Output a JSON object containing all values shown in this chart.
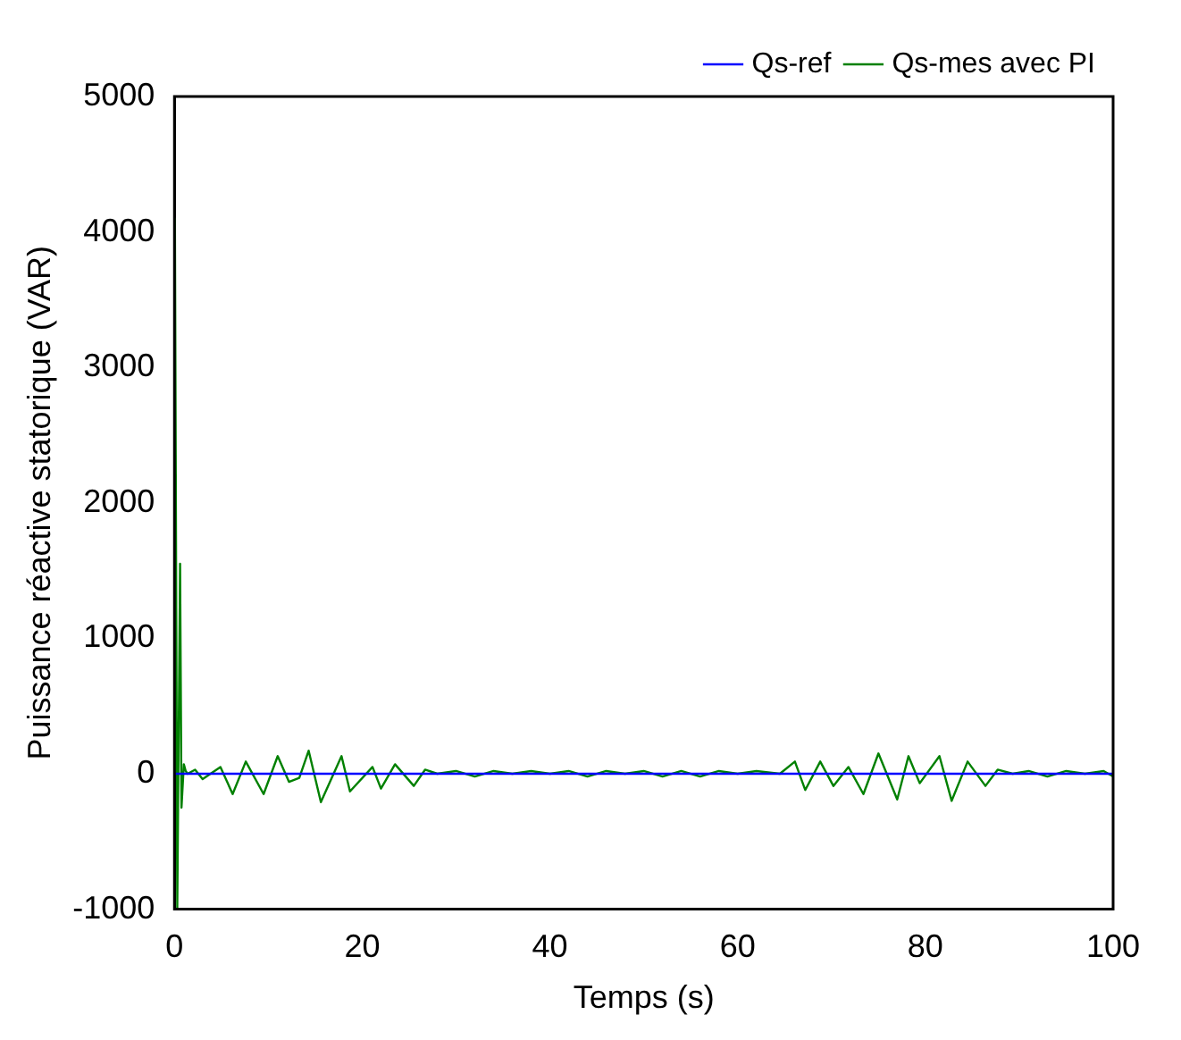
{
  "chart_data": {
    "type": "line",
    "xlabel": "Temps (s)",
    "ylabel": "Puissance réactive statorique (VAR)",
    "xlim": [
      0,
      100
    ],
    "ylim": [
      -1000,
      5000
    ],
    "xticks": [
      0,
      20,
      40,
      60,
      80,
      100
    ],
    "yticks": [
      -1000,
      0,
      1000,
      2000,
      3000,
      4000,
      5000
    ],
    "grid": false,
    "legend": "top right",
    "marker": "none",
    "line_style": "solid",
    "series": [
      {
        "name": "Qs-ref",
        "color": "#0000ff",
        "x": [
          0,
          100
        ],
        "values": [
          0,
          0
        ]
      },
      {
        "name": "Qs-mes avec PI",
        "color": "#008000",
        "x": [
          0,
          0.05,
          0.3,
          0.6,
          0.75,
          1.0,
          1.2,
          1.4,
          2.2,
          3.0,
          4.9,
          6.2,
          7.6,
          9.5,
          11.0,
          12.2,
          13.3,
          14.3,
          15.6,
          17.8,
          18.7,
          21.1,
          22.0,
          23.5,
          25.5,
          26.7,
          28.0,
          30,
          32,
          34,
          36,
          38,
          40,
          42,
          44,
          46,
          48,
          50,
          52,
          54,
          56,
          58,
          60,
          62,
          64.5,
          66.1,
          67.2,
          68.8,
          70.2,
          71.8,
          73.4,
          75.0,
          77.0,
          78.2,
          79.4,
          81.5,
          82.8,
          84.5,
          86.4,
          87.7,
          89.3,
          91,
          93,
          95,
          97,
          99,
          100
        ],
        "values": [
          0,
          4100,
          -1000,
          1550,
          -250,
          70,
          20,
          0,
          30,
          -40,
          50,
          -150,
          90,
          -150,
          130,
          -60,
          -30,
          170,
          -210,
          130,
          -130,
          50,
          -110,
          70,
          -90,
          30,
          0,
          20,
          -20,
          20,
          0,
          20,
          0,
          20,
          -20,
          20,
          0,
          20,
          -20,
          20,
          -20,
          20,
          0,
          20,
          0,
          90,
          -120,
          90,
          -90,
          50,
          -150,
          150,
          -190,
          130,
          -70,
          130,
          -200,
          90,
          -90,
          30,
          0,
          20,
          -20,
          20,
          0,
          20,
          -20
        ]
      }
    ]
  }
}
